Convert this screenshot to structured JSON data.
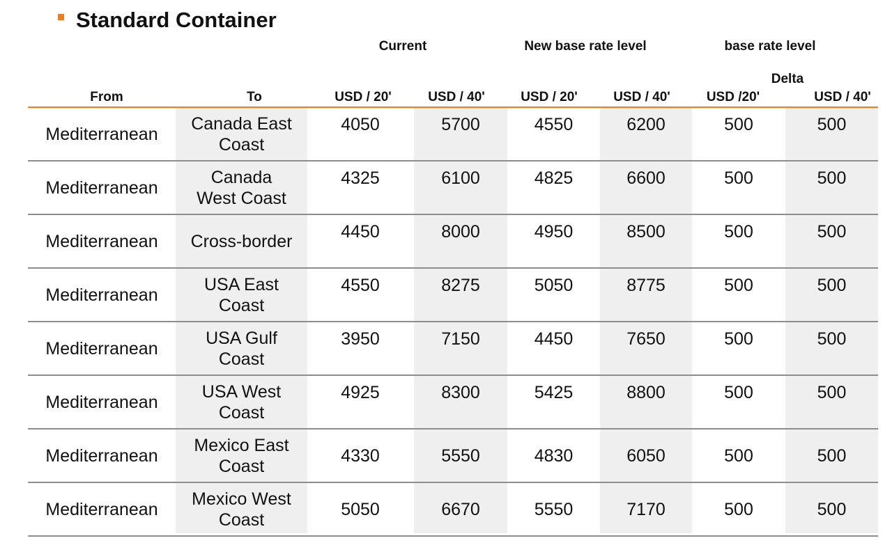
{
  "title": "Standard Container",
  "header": {
    "current": "Current",
    "new_base": "New base rate level",
    "delta_base": "base rate level",
    "delta": "Delta",
    "from": "From",
    "to": "To",
    "cur20": "USD / 20'",
    "cur40": "USD / 40'",
    "new20": "USD / 20'",
    "new40": "USD / 40'",
    "delta20": "USD /20'",
    "delta40": "USD / 40'"
  },
  "colors": {
    "accent": "#f07d1a",
    "shade": "#efefef",
    "rule": "#8c8c8c"
  },
  "rows": [
    {
      "from": "Mediterranean",
      "to": [
        "Canada East",
        "Coast"
      ],
      "cur20": "4050",
      "cur40": "5700",
      "new20": "4550",
      "new40": "6200",
      "d20": "500",
      "d40": "500"
    },
    {
      "from": "Mediterranean",
      "to": [
        "Canada",
        "West Coast"
      ],
      "cur20": "4325",
      "cur40": "6100",
      "new20": "4825",
      "new40": "6600",
      "d20": "500",
      "d40": "500"
    },
    {
      "from": "Mediterranean",
      "to": [
        "Cross-border"
      ],
      "cur20": "4450",
      "cur40": "8000",
      "new20": "4950",
      "new40": "8500",
      "d20": "500",
      "d40": "500"
    },
    {
      "from": "Mediterranean",
      "to": [
        "USA East",
        "Coast"
      ],
      "cur20": "4550",
      "cur40": "8275",
      "new20": "5050",
      "new40": "8775",
      "d20": "500",
      "d40": "500"
    },
    {
      "from": "Mediterranean",
      "to": [
        "USA Gulf",
        "Coast"
      ],
      "cur20": "3950",
      "cur40": "7150",
      "new20": "4450",
      "new40": "7650",
      "d20": "500",
      "d40": "500"
    },
    {
      "from": "Mediterranean",
      "to": [
        "USA West",
        "Coast"
      ],
      "cur20": "4925",
      "cur40": "8300",
      "new20": "5425",
      "new40": "8800",
      "d20": "500",
      "d40": "500"
    },
    {
      "from": "Mediterranean",
      "to": [
        "Mexico East",
        "Coast"
      ],
      "cur20": "4330",
      "cur40": "5550",
      "new20": "4830",
      "new40": "6050",
      "d20": "500",
      "d40": "500",
      "valign": "middle"
    },
    {
      "from": "Mediterranean",
      "to": [
        "Mexico West",
        "Coast"
      ],
      "cur20": "5050",
      "cur40": "6670",
      "new20": "5550",
      "new40": "7170",
      "d20": "500",
      "d40": "500",
      "valign": "middle"
    }
  ]
}
